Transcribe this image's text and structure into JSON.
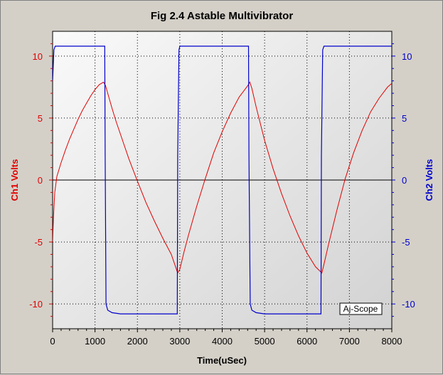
{
  "chart_data": {
    "type": "line",
    "title": "Fig 2.4 Astable Multivibrator",
    "xlabel": "Time(uSec)",
    "ylabel_left": "Ch1 Volts",
    "ylabel_right": "Ch2 Volts",
    "xlim": [
      0,
      8000
    ],
    "ylim_left": [
      -12,
      12
    ],
    "ylim_right": [
      -12,
      12
    ],
    "x_ticks": [
      0,
      1000,
      2000,
      3000,
      4000,
      5000,
      6000,
      7000,
      8000
    ],
    "y_ticks_left": [
      -10,
      -5,
      0,
      5,
      10
    ],
    "y_ticks_right": [
      -10,
      -5,
      0,
      5,
      10
    ],
    "grid": true,
    "annotation": "Aj-Scope",
    "colors": {
      "ch1": "#e00000",
      "ch2": "#0000cc",
      "plot_bg_light": "#fafafa",
      "plot_bg_dark": "#d2d2d2"
    },
    "series": [
      {
        "axis": "left",
        "x": [
          0,
          20,
          50,
          100,
          200,
          300,
          400,
          500,
          600,
          700,
          800,
          900,
          1000,
          1100,
          1200,
          1250,
          1300,
          1400,
          1500,
          1600,
          1800,
          2000,
          2200,
          2400,
          2600,
          2800,
          2900,
          2950,
          3000,
          3100,
          3200,
          3400,
          3600,
          3800,
          4000,
          4200,
          4400,
          4600,
          4650,
          4700,
          4800,
          5000,
          5200,
          5400,
          5600,
          5800,
          6000,
          6200,
          6350,
          6400,
          6500,
          6700,
          6900,
          7100,
          7300,
          7500,
          7700,
          7900,
          8000
        ],
        "values": [
          -5,
          -3,
          -1,
          0.3,
          1.4,
          2.4,
          3.3,
          4.1,
          4.9,
          5.6,
          6.2,
          6.8,
          7.3,
          7.7,
          7.9,
          7.6,
          7.0,
          5.8,
          4.7,
          3.7,
          1.7,
          -0.1,
          -1.8,
          -3.3,
          -4.7,
          -6.0,
          -7.0,
          -7.5,
          -7.2,
          -5.8,
          -4.5,
          -2.1,
          0.1,
          2.2,
          3.9,
          5.4,
          6.7,
          7.6,
          7.9,
          7.4,
          5.9,
          3.2,
          0.9,
          -1.1,
          -2.9,
          -4.5,
          -5.9,
          -7.0,
          -7.5,
          -6.8,
          -5.3,
          -2.5,
          0.1,
          2.2,
          4.0,
          5.5,
          6.6,
          7.5,
          7.8
        ]
      },
      {
        "axis": "right",
        "x": [
          0,
          30,
          60,
          100,
          1230,
          1240,
          1260,
          1300,
          1400,
          1600,
          2000,
          2500,
          2940,
          2950,
          2980,
          3000,
          3100,
          4000,
          4620,
          4630,
          4660,
          4700,
          4800,
          5000,
          5500,
          6000,
          6330,
          6340,
          6370,
          6400,
          7000,
          8000
        ],
        "values": [
          8,
          10.5,
          10.8,
          10.8,
          10.8,
          2,
          -10,
          -10.5,
          -10.7,
          -10.8,
          -10.8,
          -10.8,
          -10.8,
          2,
          10.5,
          10.8,
          10.8,
          10.8,
          10.8,
          2,
          -10,
          -10.5,
          -10.7,
          -10.8,
          -10.8,
          -10.8,
          -10.8,
          2,
          10.5,
          10.8,
          10.8,
          10.8
        ]
      }
    ]
  }
}
